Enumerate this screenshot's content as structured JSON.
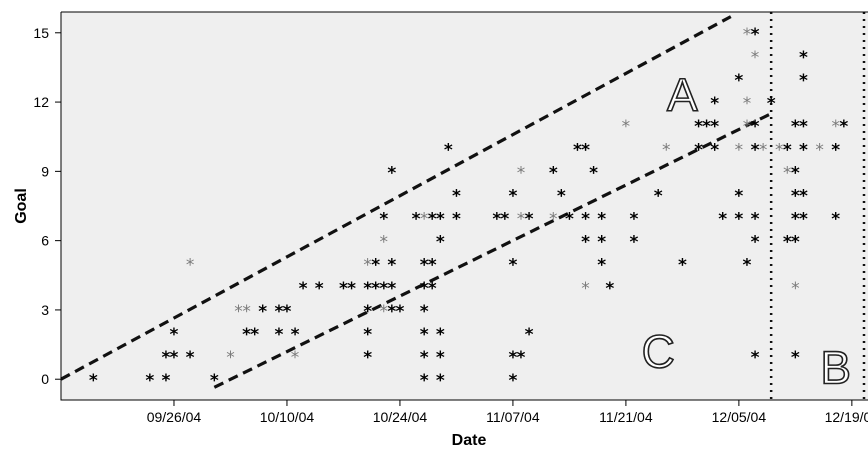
{
  "chart_data": {
    "type": "scatter",
    "xlabel": "Date",
    "ylabel": "Goal",
    "x_is_date": true,
    "xlim": [
      "2004-09-12",
      "2004-12-21"
    ],
    "ylim": [
      -0.9,
      15.9
    ],
    "y_ticks": [
      0,
      3,
      6,
      9,
      12,
      15
    ],
    "x_ticks": [
      {
        "date": "2004-09-26",
        "label": "09/26/04"
      },
      {
        "date": "2004-10-10",
        "label": "10/10/04"
      },
      {
        "date": "2004-10-24",
        "label": "10/24/04"
      },
      {
        "date": "2004-11-07",
        "label": "11/07/04"
      },
      {
        "date": "2004-11-21",
        "label": "11/21/04"
      },
      {
        "date": "2004-12-05",
        "label": "12/05/04"
      },
      {
        "date": "2004-12-19",
        "label": "12/19/04"
      }
    ],
    "grid": false,
    "background_color": "#efefef",
    "marker_dark": "#000000",
    "marker_gray": "#7a7a7a",
    "points": [
      {
        "x": "2004-09-16",
        "y": 0,
        "c": "d"
      },
      {
        "x": "2004-09-23",
        "y": 0,
        "c": "d"
      },
      {
        "x": "2004-09-25",
        "y": 0,
        "c": "d"
      },
      {
        "x": "2004-09-25",
        "y": 1,
        "c": "d"
      },
      {
        "x": "2004-09-26",
        "y": 1,
        "c": "d"
      },
      {
        "x": "2004-09-26",
        "y": 2,
        "c": "d"
      },
      {
        "x": "2004-09-28",
        "y": 1,
        "c": "d"
      },
      {
        "x": "2004-09-28",
        "y": 5,
        "c": "g"
      },
      {
        "x": "2004-10-01",
        "y": 0,
        "c": "d"
      },
      {
        "x": "2004-10-03",
        "y": 1,
        "c": "g"
      },
      {
        "x": "2004-10-04",
        "y": 3,
        "c": "g"
      },
      {
        "x": "2004-10-05",
        "y": 2,
        "c": "d"
      },
      {
        "x": "2004-10-05",
        "y": 3,
        "c": "g"
      },
      {
        "x": "2004-10-06",
        "y": 2,
        "c": "d"
      },
      {
        "x": "2004-10-07",
        "y": 3,
        "c": "d"
      },
      {
        "x": "2004-10-09",
        "y": 2,
        "c": "d"
      },
      {
        "x": "2004-10-09",
        "y": 3,
        "c": "d"
      },
      {
        "x": "2004-10-10",
        "y": 3,
        "c": "d"
      },
      {
        "x": "2004-10-11",
        "y": 1,
        "c": "g"
      },
      {
        "x": "2004-10-11",
        "y": 2,
        "c": "d"
      },
      {
        "x": "2004-10-12",
        "y": 4,
        "c": "d"
      },
      {
        "x": "2004-10-14",
        "y": 4,
        "c": "d"
      },
      {
        "x": "2004-10-17",
        "y": 4,
        "c": "d"
      },
      {
        "x": "2004-10-18",
        "y": 4,
        "c": "d"
      },
      {
        "x": "2004-10-20",
        "y": 1,
        "c": "d"
      },
      {
        "x": "2004-10-20",
        "y": 2,
        "c": "d"
      },
      {
        "x": "2004-10-20",
        "y": 3,
        "c": "d"
      },
      {
        "x": "2004-10-20",
        "y": 4,
        "c": "d"
      },
      {
        "x": "2004-10-20",
        "y": 5,
        "c": "g"
      },
      {
        "x": "2004-10-21",
        "y": 4,
        "c": "d"
      },
      {
        "x": "2004-10-21",
        "y": 5,
        "c": "d"
      },
      {
        "x": "2004-10-22",
        "y": 3,
        "c": "g"
      },
      {
        "x": "2004-10-22",
        "y": 4,
        "c": "d"
      },
      {
        "x": "2004-10-22",
        "y": 6,
        "c": "g"
      },
      {
        "x": "2004-10-22",
        "y": 7,
        "c": "d"
      },
      {
        "x": "2004-10-23",
        "y": 3,
        "c": "d"
      },
      {
        "x": "2004-10-23",
        "y": 4,
        "c": "d"
      },
      {
        "x": "2004-10-23",
        "y": 5,
        "c": "d"
      },
      {
        "x": "2004-10-23",
        "y": 9,
        "c": "d"
      },
      {
        "x": "2004-10-24",
        "y": 3,
        "c": "d"
      },
      {
        "x": "2004-10-26",
        "y": 7,
        "c": "d"
      },
      {
        "x": "2004-10-27",
        "y": 0,
        "c": "d"
      },
      {
        "x": "2004-10-27",
        "y": 1,
        "c": "d"
      },
      {
        "x": "2004-10-27",
        "y": 2,
        "c": "d"
      },
      {
        "x": "2004-10-27",
        "y": 3,
        "c": "d"
      },
      {
        "x": "2004-10-27",
        "y": 4,
        "c": "d"
      },
      {
        "x": "2004-10-27",
        "y": 5,
        "c": "d"
      },
      {
        "x": "2004-10-27",
        "y": 7,
        "c": "g"
      },
      {
        "x": "2004-10-28",
        "y": 4,
        "c": "d"
      },
      {
        "x": "2004-10-28",
        "y": 5,
        "c": "d"
      },
      {
        "x": "2004-10-28",
        "y": 7,
        "c": "d"
      },
      {
        "x": "2004-10-29",
        "y": 0,
        "c": "d"
      },
      {
        "x": "2004-10-29",
        "y": 1,
        "c": "d"
      },
      {
        "x": "2004-10-29",
        "y": 2,
        "c": "d"
      },
      {
        "x": "2004-10-29",
        "y": 6,
        "c": "d"
      },
      {
        "x": "2004-10-29",
        "y": 7,
        "c": "d"
      },
      {
        "x": "2004-10-30",
        "y": 10,
        "c": "d"
      },
      {
        "x": "2004-10-31",
        "y": 7,
        "c": "d"
      },
      {
        "x": "2004-10-31",
        "y": 8,
        "c": "d"
      },
      {
        "x": "2004-11-05",
        "y": 7,
        "c": "d"
      },
      {
        "x": "2004-11-06",
        "y": 7,
        "c": "d"
      },
      {
        "x": "2004-11-07",
        "y": 0,
        "c": "d"
      },
      {
        "x": "2004-11-07",
        "y": 1,
        "c": "d"
      },
      {
        "x": "2004-11-07",
        "y": 5,
        "c": "d"
      },
      {
        "x": "2004-11-07",
        "y": 8,
        "c": "d"
      },
      {
        "x": "2004-11-08",
        "y": 1,
        "c": "d"
      },
      {
        "x": "2004-11-08",
        "y": 7,
        "c": "g"
      },
      {
        "x": "2004-11-08",
        "y": 9,
        "c": "g"
      },
      {
        "x": "2004-11-09",
        "y": 2,
        "c": "d"
      },
      {
        "x": "2004-11-09",
        "y": 7,
        "c": "d"
      },
      {
        "x": "2004-11-12",
        "y": 9,
        "c": "d"
      },
      {
        "x": "2004-11-12",
        "y": 7,
        "c": "g"
      },
      {
        "x": "2004-11-13",
        "y": 8,
        "c": "d"
      },
      {
        "x": "2004-11-14",
        "y": 7,
        "c": "d"
      },
      {
        "x": "2004-11-15",
        "y": 10,
        "c": "d"
      },
      {
        "x": "2004-11-16",
        "y": 10,
        "c": "d"
      },
      {
        "x": "2004-11-16",
        "y": 7,
        "c": "d"
      },
      {
        "x": "2004-11-16",
        "y": 4,
        "c": "g"
      },
      {
        "x": "2004-11-16",
        "y": 6,
        "c": "d"
      },
      {
        "x": "2004-11-17",
        "y": 9,
        "c": "d"
      },
      {
        "x": "2004-11-18",
        "y": 7,
        "c": "d"
      },
      {
        "x": "2004-11-18",
        "y": 6,
        "c": "d"
      },
      {
        "x": "2004-11-18",
        "y": 5,
        "c": "d"
      },
      {
        "x": "2004-11-19",
        "y": 4,
        "c": "d"
      },
      {
        "x": "2004-11-21",
        "y": 11,
        "c": "g"
      },
      {
        "x": "2004-11-22",
        "y": 7,
        "c": "d"
      },
      {
        "x": "2004-11-22",
        "y": 6,
        "c": "d"
      },
      {
        "x": "2004-11-25",
        "y": 8,
        "c": "d"
      },
      {
        "x": "2004-11-26",
        "y": 10,
        "c": "g"
      },
      {
        "x": "2004-11-28",
        "y": 5,
        "c": "d"
      },
      {
        "x": "2004-11-30",
        "y": 10,
        "c": "d"
      },
      {
        "x": "2004-11-30",
        "y": 11,
        "c": "d"
      },
      {
        "x": "2004-12-01",
        "y": 11,
        "c": "d"
      },
      {
        "x": "2004-12-02",
        "y": 10,
        "c": "d"
      },
      {
        "x": "2004-12-02",
        "y": 11,
        "c": "d"
      },
      {
        "x": "2004-12-02",
        "y": 12,
        "c": "d"
      },
      {
        "x": "2004-12-03",
        "y": 7,
        "c": "d"
      },
      {
        "x": "2004-12-05",
        "y": 13,
        "c": "d"
      },
      {
        "x": "2004-12-05",
        "y": 8,
        "c": "d"
      },
      {
        "x": "2004-12-05",
        "y": 7,
        "c": "d"
      },
      {
        "x": "2004-12-05",
        "y": 10,
        "c": "g"
      },
      {
        "x": "2004-12-06",
        "y": 15,
        "c": "g"
      },
      {
        "x": "2004-12-06",
        "y": 12,
        "c": "g"
      },
      {
        "x": "2004-12-06",
        "y": 5,
        "c": "d"
      },
      {
        "x": "2004-12-06",
        "y": 11,
        "c": "g"
      },
      {
        "x": "2004-12-07",
        "y": 15,
        "c": "d"
      },
      {
        "x": "2004-12-07",
        "y": 14,
        "c": "g"
      },
      {
        "x": "2004-12-07",
        "y": 11,
        "c": "d"
      },
      {
        "x": "2004-12-07",
        "y": 10,
        "c": "d"
      },
      {
        "x": "2004-12-07",
        "y": 7,
        "c": "d"
      },
      {
        "x": "2004-12-07",
        "y": 6,
        "c": "d"
      },
      {
        "x": "2004-12-07",
        "y": 1,
        "c": "d"
      },
      {
        "x": "2004-12-08",
        "y": 10,
        "c": "g"
      },
      {
        "x": "2004-12-09",
        "y": 12,
        "c": "d"
      },
      {
        "x": "2004-12-10",
        "y": 10,
        "c": "g"
      },
      {
        "x": "2004-12-11",
        "y": 9,
        "c": "g"
      },
      {
        "x": "2004-12-11",
        "y": 6,
        "c": "d"
      },
      {
        "x": "2004-12-11",
        "y": 10,
        "c": "d"
      },
      {
        "x": "2004-12-12",
        "y": 11,
        "c": "d"
      },
      {
        "x": "2004-12-12",
        "y": 8,
        "c": "d"
      },
      {
        "x": "2004-12-12",
        "y": 7,
        "c": "d"
      },
      {
        "x": "2004-12-12",
        "y": 9,
        "c": "d"
      },
      {
        "x": "2004-12-12",
        "y": 6,
        "c": "d"
      },
      {
        "x": "2004-12-12",
        "y": 4,
        "c": "g"
      },
      {
        "x": "2004-12-12",
        "y": 1,
        "c": "d"
      },
      {
        "x": "2004-12-13",
        "y": 14,
        "c": "d"
      },
      {
        "x": "2004-12-13",
        "y": 13,
        "c": "d"
      },
      {
        "x": "2004-12-13",
        "y": 11,
        "c": "d"
      },
      {
        "x": "2004-12-13",
        "y": 10,
        "c": "d"
      },
      {
        "x": "2004-12-13",
        "y": 8,
        "c": "d"
      },
      {
        "x": "2004-12-13",
        "y": 7,
        "c": "d"
      },
      {
        "x": "2004-12-15",
        "y": 10,
        "c": "g"
      },
      {
        "x": "2004-12-17",
        "y": 11,
        "c": "g"
      },
      {
        "x": "2004-12-17",
        "y": 10,
        "c": "d"
      },
      {
        "x": "2004-12-17",
        "y": 7,
        "c": "d"
      },
      {
        "x": "2004-12-18",
        "y": 11,
        "c": "d"
      }
    ],
    "reference_lines": [
      {
        "style": "dashed",
        "from": {
          "x": "2004-09-12",
          "y": 0
        },
        "to": {
          "x": "2004-12-04",
          "y": 15.7
        }
      },
      {
        "style": "dashed",
        "from": {
          "x": "2004-10-01",
          "y": -0.35
        },
        "to": {
          "x": "2004-12-09",
          "y": 11.5
        }
      },
      {
        "style": "dotted",
        "at": "2004-12-09"
      },
      {
        "style": "dotted",
        "at": "2004-12-21"
      }
    ],
    "region_labels": [
      {
        "text": "A",
        "x": "2004-11-28",
        "y": 12.3
      },
      {
        "text": "C",
        "x": "2004-11-25",
        "y": 1.2
      },
      {
        "text": "B",
        "x": "2004-12-17",
        "y": 0.5
      }
    ]
  }
}
